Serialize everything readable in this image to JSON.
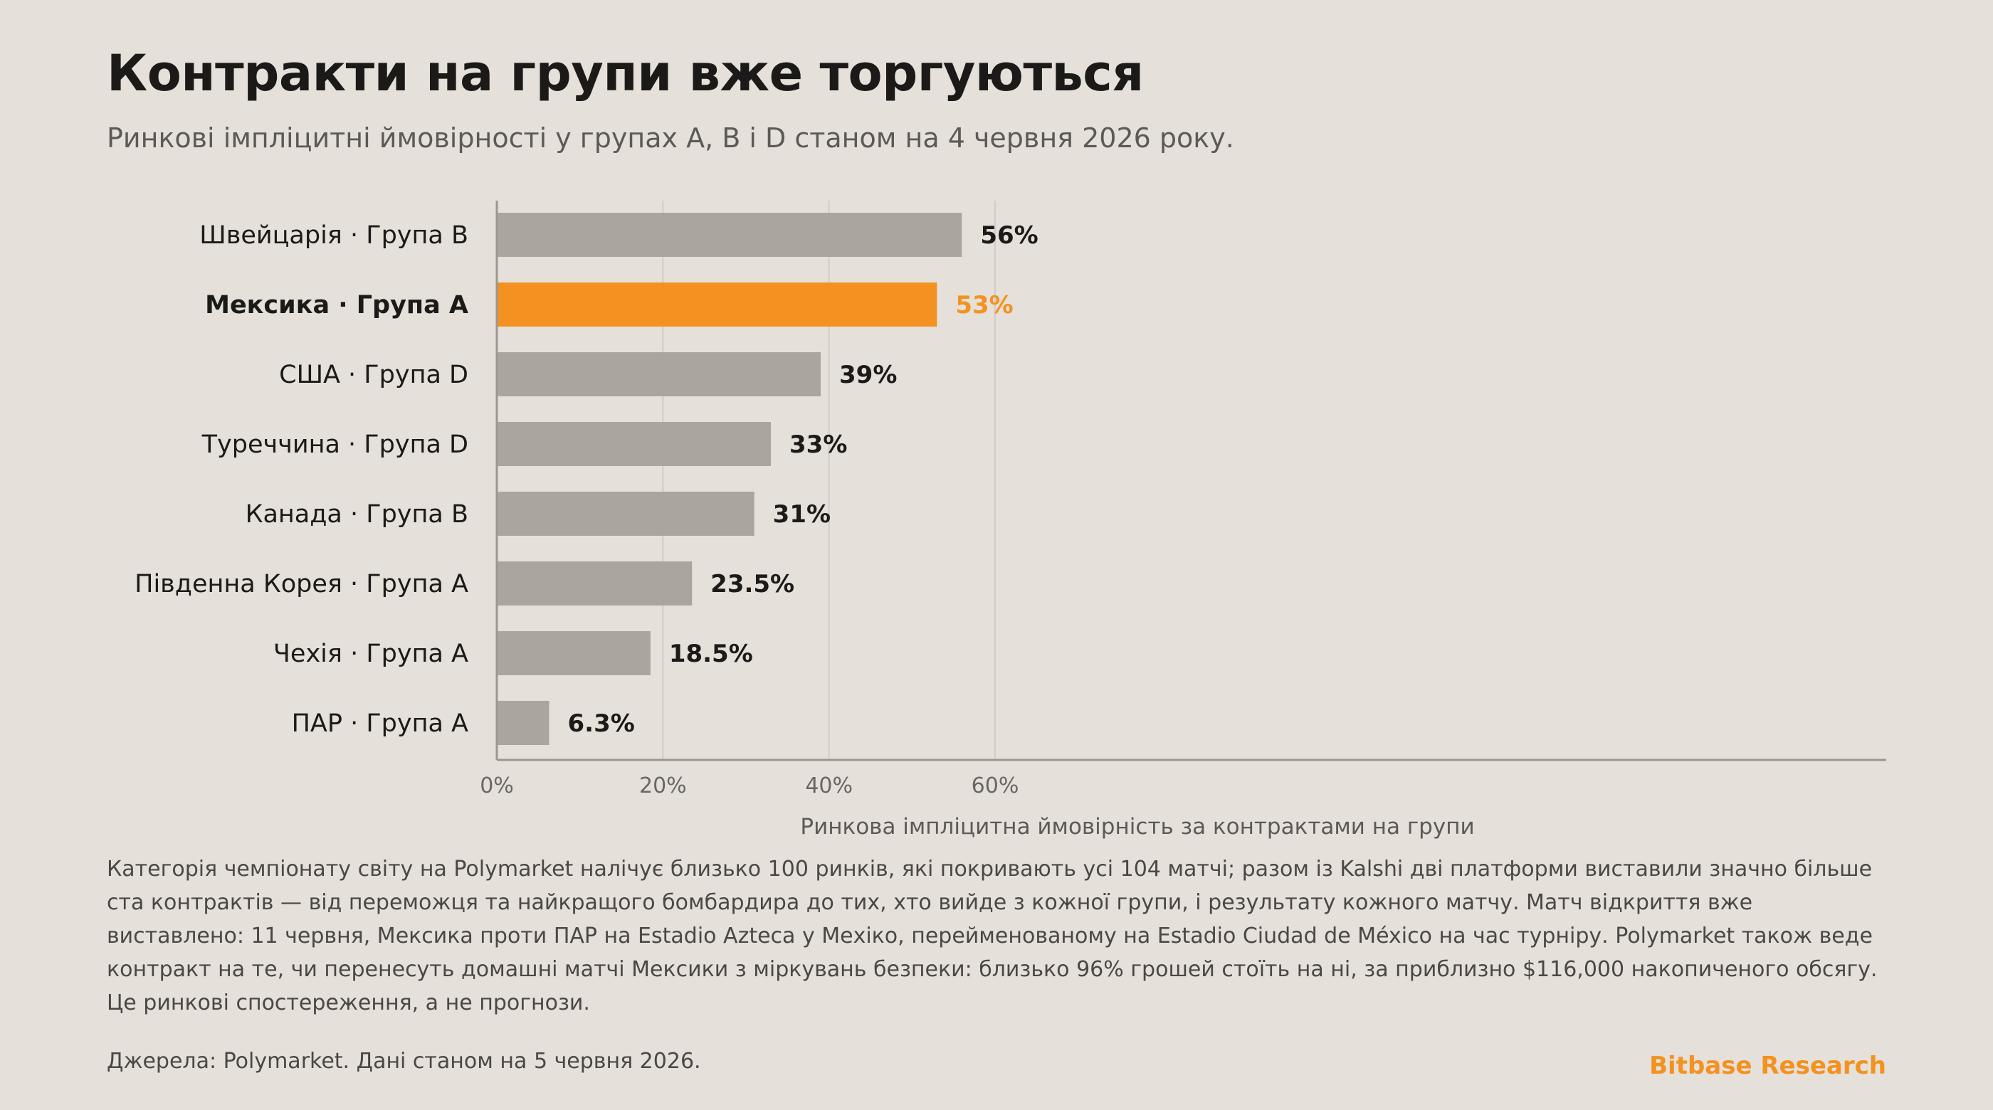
{
  "header": {
    "title": "Контракти на групи вже торгуються",
    "subtitle": "Ринкові імпліцитні ймовірності у групах A, B і D станом на 4 червня 2026 року."
  },
  "chart_data": {
    "type": "bar",
    "orientation": "horizontal",
    "categories": [
      "Швейцарія · Група B",
      "Мексика · Група A",
      "США · Група D",
      "Туреччина · Група D",
      "Канада · Група B",
      "Південна Корея · Група A",
      "Чехія · Група A",
      "ПАР · Група A"
    ],
    "values": [
      56,
      53,
      39,
      33,
      31,
      23.5,
      18.5,
      6.3
    ],
    "value_labels": [
      "56%",
      "53%",
      "39%",
      "33%",
      "31%",
      "23.5%",
      "18.5%",
      "6.3%"
    ],
    "highlight_index": 1,
    "xlim": [
      0,
      65
    ],
    "xticks": [
      0,
      20,
      40,
      60
    ],
    "xtick_labels": [
      "0%",
      "20%",
      "40%",
      "60%"
    ],
    "xlabel": "Ринкова імпліцитна ймовірність за контрактами на групи",
    "ylabel": "",
    "grid": "vertical",
    "colors": {
      "bar": "#aaa59f",
      "highlight": "#f39220",
      "value_label": "#1b1a18",
      "grid": "#d2ccc5",
      "axis": "#9c9790",
      "tick_label": "#6a6661"
    }
  },
  "body": {
    "text": "Категорія чемпіонату світу на Polymarket налічує близько 100 ринків, які покривають усі 104 матчі; разом із Kalshi дві платформи виставили значно більше ста контрактів — від переможця та найкращого бомбардира до тих, хто вийде з кожної групи, і результату кожного матчу. Матч відкриття вже виставлено: 11 червня, Мексика проти ПАР на Estadio Azteca у Мехіко, перейменованому на Estadio Ciudad de México на час турніру. Polymarket також веде контракт на те, чи перенесуть домашні матчі Мексики з міркувань безпеки: близько 96% грошей стоїть на ні, за приблизно $116,000 накопиченого обсягу. Це ринкові спостереження, а не прогнози."
  },
  "footer": {
    "source": "Джерела: Polymarket. Дані станом на 5 червня 2026.",
    "brand": "Bitbase Research",
    "brand_color": "#f39220"
  }
}
